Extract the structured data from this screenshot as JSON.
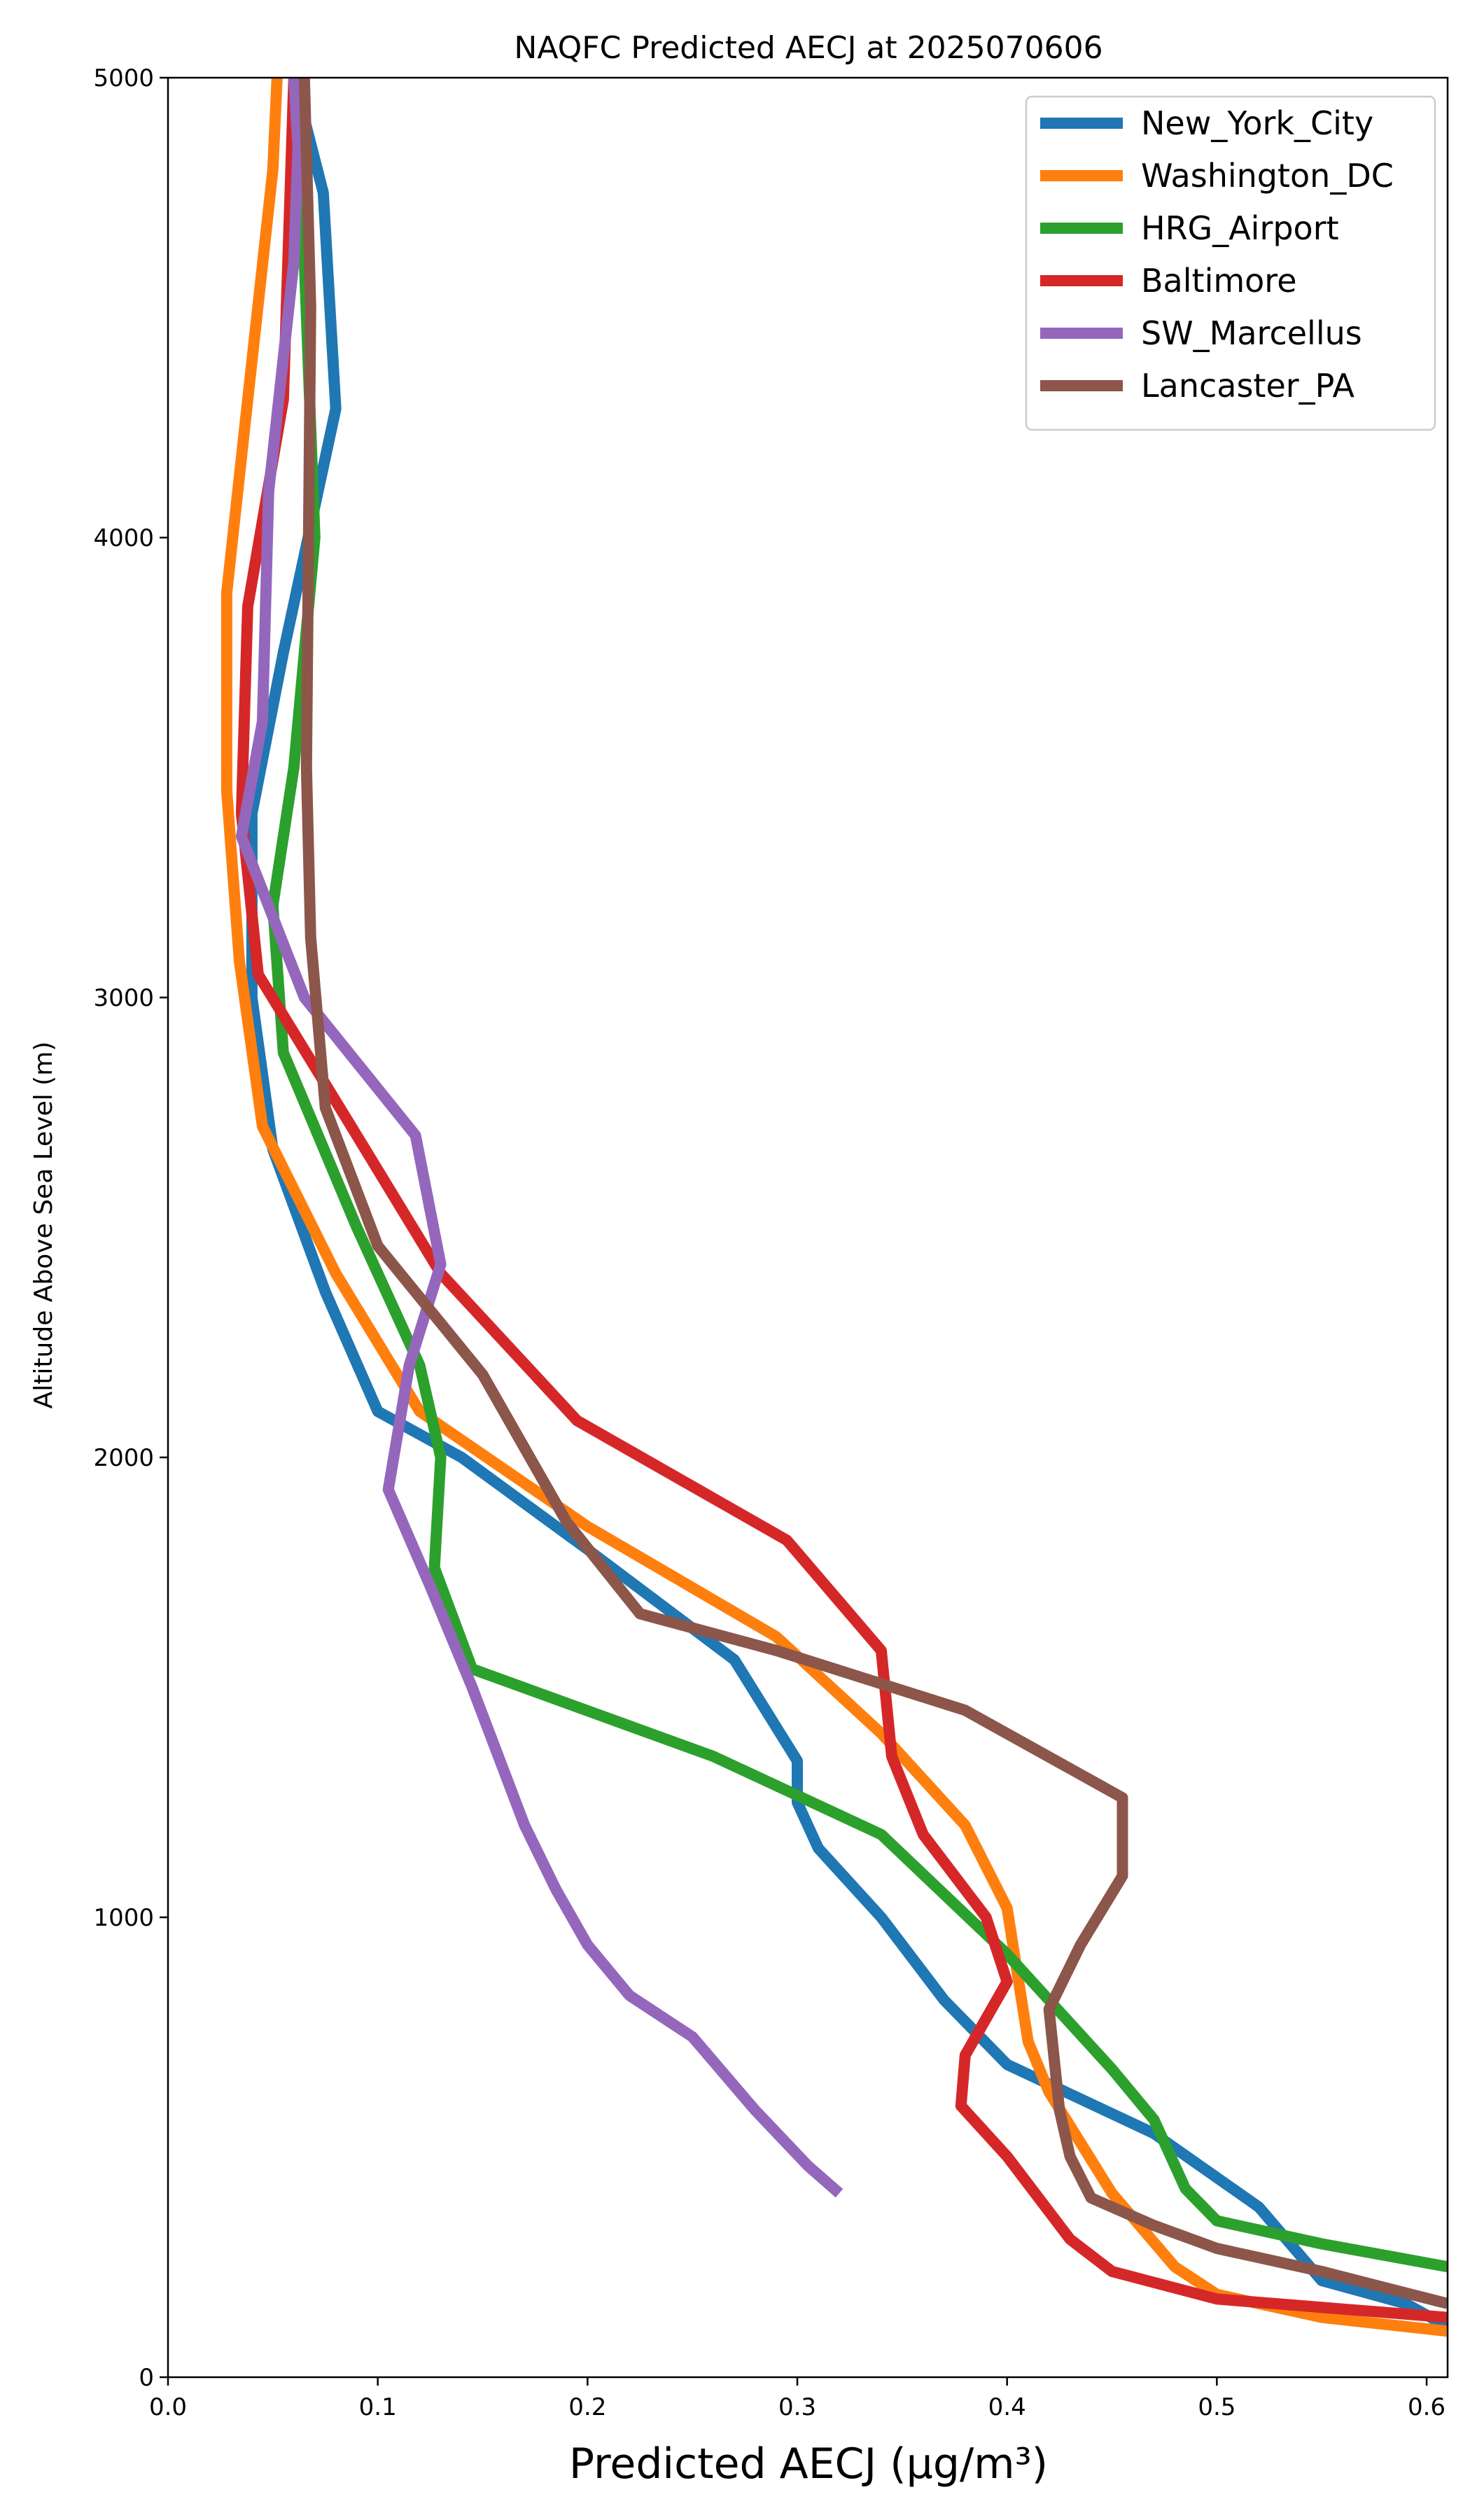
{
  "chart_data": {
    "type": "line",
    "title": "NAQFC Predicted AECJ at 2025070606",
    "xlabel": "Predicted AECJ (μg/m³)",
    "ylabel": "Altitude Above Sea Level (m)",
    "xlim": [
      0,
      0.61
    ],
    "ylim": [
      0,
      5000
    ],
    "xticks": [
      "0.0",
      "0.1",
      "0.2",
      "0.3",
      "0.4",
      "0.5",
      "0.6"
    ],
    "xtick_values": [
      0,
      0.1,
      0.2,
      0.3,
      0.4,
      0.5,
      0.6
    ],
    "yticks": [
      "0",
      "1000",
      "2000",
      "3000",
      "4000",
      "5000"
    ],
    "ytick_values": [
      0,
      1000,
      2000,
      3000,
      4000,
      5000
    ],
    "grid": false,
    "legend_position": "top-right",
    "series": [
      {
        "name": "New_York_City",
        "color": "#1f77b4",
        "points": [
          [
            0.61,
            110
          ],
          [
            0.59,
            160
          ],
          [
            0.55,
            210
          ],
          [
            0.52,
            370
          ],
          [
            0.47,
            530
          ],
          [
            0.4,
            680
          ],
          [
            0.37,
            820
          ],
          [
            0.34,
            1000
          ],
          [
            0.31,
            1150
          ],
          [
            0.3,
            1250
          ],
          [
            0.3,
            1340
          ],
          [
            0.27,
            1560
          ],
          [
            0.2,
            1800
          ],
          [
            0.14,
            2000
          ],
          [
            0.1,
            2100
          ],
          [
            0.075,
            2360
          ],
          [
            0.05,
            2670
          ],
          [
            0.04,
            3000
          ],
          [
            0.04,
            3400
          ],
          [
            0.055,
            3750
          ],
          [
            0.08,
            4280
          ],
          [
            0.074,
            4750
          ],
          [
            0.06,
            5000
          ]
        ]
      },
      {
        "name": "Washington_DC",
        "color": "#ff7f0e",
        "points": [
          [
            0.61,
            100
          ],
          [
            0.55,
            130
          ],
          [
            0.5,
            180
          ],
          [
            0.48,
            240
          ],
          [
            0.45,
            400
          ],
          [
            0.42,
            620
          ],
          [
            0.41,
            730
          ],
          [
            0.4,
            1020
          ],
          [
            0.38,
            1200
          ],
          [
            0.34,
            1400
          ],
          [
            0.29,
            1610
          ],
          [
            0.2,
            1850
          ],
          [
            0.12,
            2100
          ],
          [
            0.08,
            2400
          ],
          [
            0.045,
            2720
          ],
          [
            0.034,
            3080
          ],
          [
            0.028,
            3450
          ],
          [
            0.028,
            3880
          ],
          [
            0.038,
            4300
          ],
          [
            0.05,
            4800
          ],
          [
            0.052,
            5000
          ]
        ]
      },
      {
        "name": "HRG_Airport",
        "color": "#2ca02c",
        "points": [
          [
            0.61,
            240
          ],
          [
            0.55,
            290
          ],
          [
            0.5,
            340
          ],
          [
            0.485,
            410
          ],
          [
            0.47,
            560
          ],
          [
            0.45,
            670
          ],
          [
            0.4,
            920
          ],
          [
            0.34,
            1180
          ],
          [
            0.26,
            1350
          ],
          [
            0.145,
            1540
          ],
          [
            0.127,
            1760
          ],
          [
            0.13,
            2000
          ],
          [
            0.12,
            2200
          ],
          [
            0.09,
            2500
          ],
          [
            0.055,
            2880
          ],
          [
            0.05,
            3200
          ],
          [
            0.06,
            3500
          ],
          [
            0.07,
            4000
          ],
          [
            0.065,
            4600
          ],
          [
            0.063,
            5000
          ]
        ]
      },
      {
        "name": "Baltimore",
        "color": "#d62728",
        "points": [
          [
            0.61,
            130
          ],
          [
            0.5,
            170
          ],
          [
            0.45,
            230
          ],
          [
            0.43,
            300
          ],
          [
            0.4,
            480
          ],
          [
            0.378,
            590
          ],
          [
            0.38,
            700
          ],
          [
            0.4,
            860
          ],
          [
            0.39,
            1000
          ],
          [
            0.36,
            1180
          ],
          [
            0.345,
            1350
          ],
          [
            0.34,
            1580
          ],
          [
            0.295,
            1820
          ],
          [
            0.195,
            2080
          ],
          [
            0.13,
            2400
          ],
          [
            0.09,
            2700
          ],
          [
            0.043,
            3050
          ],
          [
            0.035,
            3400
          ],
          [
            0.038,
            3850
          ],
          [
            0.055,
            4300
          ],
          [
            0.06,
            5000
          ]
        ]
      },
      {
        "name": "SW_Marcellus",
        "color": "#9467bd",
        "points": [
          [
            0.32,
            400
          ],
          [
            0.305,
            460
          ],
          [
            0.28,
            580
          ],
          [
            0.25,
            740
          ],
          [
            0.22,
            830
          ],
          [
            0.2,
            940
          ],
          [
            0.185,
            1060
          ],
          [
            0.17,
            1200
          ],
          [
            0.145,
            1500
          ],
          [
            0.125,
            1720
          ],
          [
            0.105,
            1930
          ],
          [
            0.115,
            2200
          ],
          [
            0.13,
            2420
          ],
          [
            0.118,
            2700
          ],
          [
            0.065,
            3000
          ],
          [
            0.035,
            3350
          ],
          [
            0.045,
            3600
          ],
          [
            0.048,
            4100
          ],
          [
            0.06,
            4600
          ],
          [
            0.062,
            4850
          ],
          [
            0.06,
            5000
          ]
        ]
      },
      {
        "name": "Lancaster_PA",
        "color": "#8c564b",
        "points": [
          [
            0.61,
            160
          ],
          [
            0.55,
            230
          ],
          [
            0.5,
            280
          ],
          [
            0.47,
            330
          ],
          [
            0.44,
            390
          ],
          [
            0.43,
            480
          ],
          [
            0.425,
            580
          ],
          [
            0.42,
            800
          ],
          [
            0.435,
            940
          ],
          [
            0.455,
            1090
          ],
          [
            0.455,
            1260
          ],
          [
            0.38,
            1450
          ],
          [
            0.29,
            1580
          ],
          [
            0.225,
            1660
          ],
          [
            0.19,
            1860
          ],
          [
            0.15,
            2180
          ],
          [
            0.1,
            2460
          ],
          [
            0.075,
            2760
          ],
          [
            0.068,
            3130
          ],
          [
            0.066,
            3500
          ],
          [
            0.068,
            4500
          ],
          [
            0.065,
            5000
          ]
        ]
      }
    ]
  }
}
